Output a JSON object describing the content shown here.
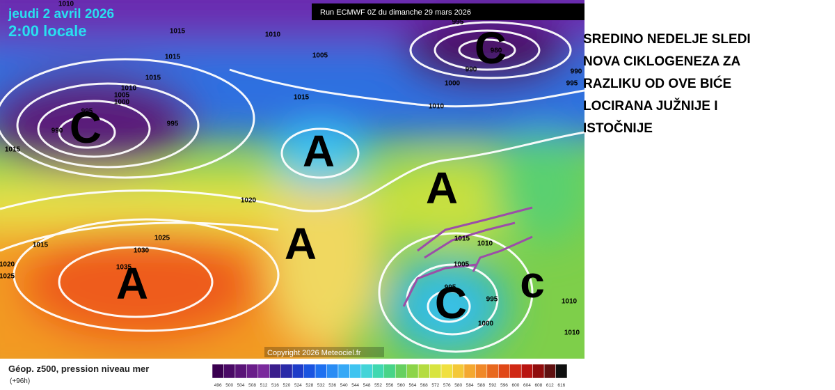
{
  "header": {
    "date": "jeudi 2 avril 2026",
    "time": "2:00 locale",
    "run": "Run ECMWF 0Z du dimanche 29 mars 2026"
  },
  "isobar_labels": [
    "1010",
    "1015",
    "1010",
    "1005",
    "995",
    "980",
    "990",
    "990",
    "995",
    "1000",
    "1015",
    "1015",
    "1010",
    "1005",
    "1000",
    "995",
    "995",
    "990",
    "1015",
    "1015",
    "1010",
    "1020",
    "1015",
    "1025",
    "1030",
    "1035",
    "1020",
    "1025",
    "1015",
    "1010",
    "1005",
    "995",
    "995",
    "1000",
    "1010",
    "1010"
  ],
  "pressure_letters": [
    "C",
    "C",
    "A",
    "A",
    "A",
    "A",
    "C",
    "c"
  ],
  "copyright": "Copyright 2026 Meteociel.fr",
  "legend": {
    "title": "Géop. z500, pression niveau mer",
    "lead": "(+96h)",
    "scale_labels": [
      "496",
      "500",
      "504",
      "508",
      "512",
      "516",
      "520",
      "524",
      "528",
      "532",
      "536",
      "540",
      "544",
      "548",
      "552",
      "556",
      "560",
      "564",
      "568",
      "572",
      "576",
      "580",
      "584",
      "588",
      "592",
      "596",
      "600",
      "604",
      "608",
      "612",
      "616"
    ]
  },
  "annotation": {
    "lines": [
      "SREDINO NEDELJE SLEDI",
      "NOVA CIKLOGENEZA ZA",
      "RAZLIKU OD OVE BIĆE",
      "LOCIRANA JUŽNIJE I",
      "ISTOČNIJE"
    ]
  }
}
